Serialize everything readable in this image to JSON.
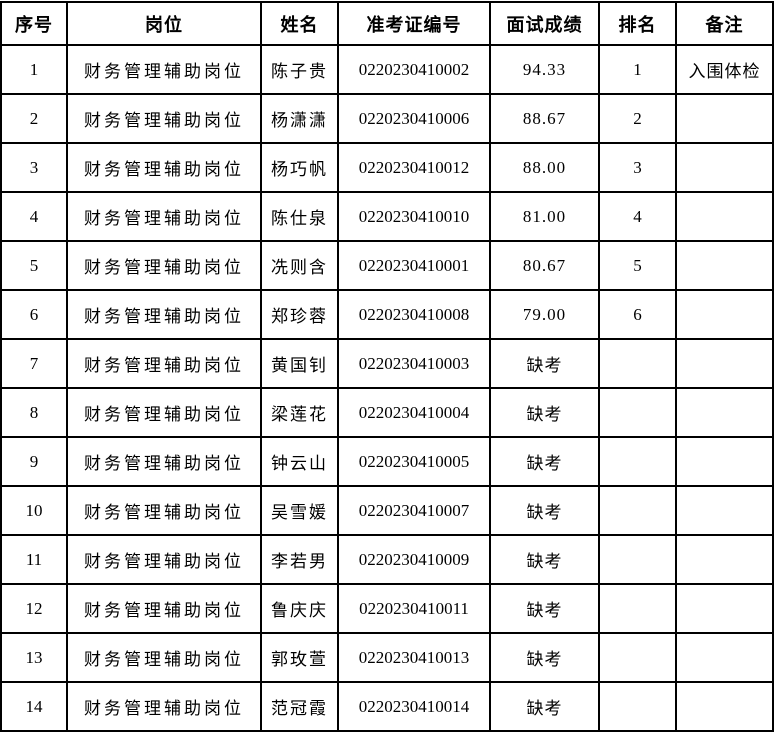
{
  "table": {
    "columns": [
      "序号",
      "岗位",
      "姓名",
      "准考证编号",
      "面试成绩",
      "排名",
      "备注"
    ],
    "absent_label": "缺考",
    "rows": [
      {
        "no": "1",
        "position": "财务管理辅助岗位",
        "name": "陈子贵",
        "id": "0220230410002",
        "score": "94.33",
        "rank": "1",
        "note": "入围体检"
      },
      {
        "no": "2",
        "position": "财务管理辅助岗位",
        "name": "杨潇潇",
        "id": "0220230410006",
        "score": "88.67",
        "rank": "2",
        "note": ""
      },
      {
        "no": "3",
        "position": "财务管理辅助岗位",
        "name": "杨巧帆",
        "id": "0220230410012",
        "score": "88.00",
        "rank": "3",
        "note": ""
      },
      {
        "no": "4",
        "position": "财务管理辅助岗位",
        "name": "陈仕泉",
        "id": "0220230410010",
        "score": "81.00",
        "rank": "4",
        "note": ""
      },
      {
        "no": "5",
        "position": "财务管理辅助岗位",
        "name": "冼则含",
        "id": "0220230410001",
        "score": "80.67",
        "rank": "5",
        "note": ""
      },
      {
        "no": "6",
        "position": "财务管理辅助岗位",
        "name": "郑珍蓉",
        "id": "0220230410008",
        "score": "79.00",
        "rank": "6",
        "note": ""
      },
      {
        "no": "7",
        "position": "财务管理辅助岗位",
        "name": "黄国钊",
        "id": "0220230410003",
        "score": "缺考",
        "rank": "",
        "note": ""
      },
      {
        "no": "8",
        "position": "财务管理辅助岗位",
        "name": "梁莲花",
        "id": "0220230410004",
        "score": "缺考",
        "rank": "",
        "note": ""
      },
      {
        "no": "9",
        "position": "财务管理辅助岗位",
        "name": "钟云山",
        "id": "0220230410005",
        "score": "缺考",
        "rank": "",
        "note": ""
      },
      {
        "no": "10",
        "position": "财务管理辅助岗位",
        "name": "吴雪媛",
        "id": "0220230410007",
        "score": "缺考",
        "rank": "",
        "note": ""
      },
      {
        "no": "11",
        "position": "财务管理辅助岗位",
        "name": "李若男",
        "id": "0220230410009",
        "score": "缺考",
        "rank": "",
        "note": ""
      },
      {
        "no": "12",
        "position": "财务管理辅助岗位",
        "name": "鲁庆庆",
        "id": "0220230410011",
        "score": "缺考",
        "rank": "",
        "note": ""
      },
      {
        "no": "13",
        "position": "财务管理辅助岗位",
        "name": "郭玫萱",
        "id": "0220230410013",
        "score": "缺考",
        "rank": "",
        "note": ""
      },
      {
        "no": "14",
        "position": "财务管理辅助岗位",
        "name": "范冠霞",
        "id": "0220230410014",
        "score": "缺考",
        "rank": "",
        "note": ""
      }
    ]
  }
}
